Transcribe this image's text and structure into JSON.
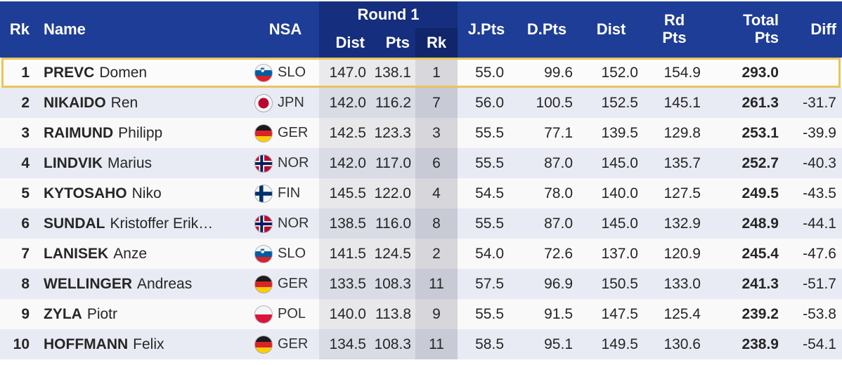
{
  "header": {
    "rk": "Rk",
    "name": "Name",
    "nsa": "NSA",
    "round1": {
      "label": "Round 1",
      "dist": "Dist",
      "pts": "Pts",
      "rk": "Rk"
    },
    "jpts": "J.Pts",
    "dpts": "D.Pts",
    "dist": "Dist",
    "rdpts_line1": "Rd",
    "rdpts_line2": "Pts",
    "total_line1": "Total",
    "total_line2": "Pts",
    "diff": "Diff"
  },
  "colors": {
    "header_blue": "#1e3d96",
    "round1_block_blue": "#152e7d",
    "row_even_bg": "#e9ebf4",
    "row_odd_bg": "#f9f9fa",
    "highlight_border": "#e9c45a"
  },
  "rows": [
    {
      "rank": "1",
      "surname": "PREVC",
      "given": "Domen",
      "flag": "slo",
      "nsa": "SLO",
      "r1_dist": "147.0",
      "r1_pts": "138.1",
      "r1_rk": "1",
      "j_pts": "55.0",
      "d_pts": "99.6",
      "dist": "152.0",
      "rd_pts": "154.9",
      "total": "293.0",
      "diff": "",
      "highlight": true
    },
    {
      "rank": "2",
      "surname": "NIKAIDO",
      "given": "Ren",
      "flag": "jpn",
      "nsa": "JPN",
      "r1_dist": "142.0",
      "r1_pts": "116.2",
      "r1_rk": "7",
      "j_pts": "56.0",
      "d_pts": "100.5",
      "dist": "152.5",
      "rd_pts": "145.1",
      "total": "261.3",
      "diff": "-31.7",
      "highlight": false
    },
    {
      "rank": "3",
      "surname": "RAIMUND",
      "given": "Philipp",
      "flag": "ger",
      "nsa": "GER",
      "r1_dist": "142.5",
      "r1_pts": "123.3",
      "r1_rk": "3",
      "j_pts": "55.5",
      "d_pts": "77.1",
      "dist": "139.5",
      "rd_pts": "129.8",
      "total": "253.1",
      "diff": "-39.9",
      "highlight": false
    },
    {
      "rank": "4",
      "surname": "LINDVIK",
      "given": "Marius",
      "flag": "nor",
      "nsa": "NOR",
      "r1_dist": "142.0",
      "r1_pts": "117.0",
      "r1_rk": "6",
      "j_pts": "55.5",
      "d_pts": "87.0",
      "dist": "145.0",
      "rd_pts": "135.7",
      "total": "252.7",
      "diff": "-40.3",
      "highlight": false
    },
    {
      "rank": "5",
      "surname": "KYTOSAHO",
      "given": "Niko",
      "flag": "fin",
      "nsa": "FIN",
      "r1_dist": "145.5",
      "r1_pts": "122.0",
      "r1_rk": "4",
      "j_pts": "54.5",
      "d_pts": "78.0",
      "dist": "140.0",
      "rd_pts": "127.5",
      "total": "249.5",
      "diff": "-43.5",
      "highlight": false
    },
    {
      "rank": "6",
      "surname": "SUNDAL",
      "given": "Kristoffer Erik…",
      "flag": "nor",
      "nsa": "NOR",
      "r1_dist": "138.5",
      "r1_pts": "116.0",
      "r1_rk": "8",
      "j_pts": "55.5",
      "d_pts": "87.0",
      "dist": "145.0",
      "rd_pts": "132.9",
      "total": "248.9",
      "diff": "-44.1",
      "highlight": false
    },
    {
      "rank": "7",
      "surname": "LANISEK",
      "given": "Anze",
      "flag": "slo",
      "nsa": "SLO",
      "r1_dist": "141.5",
      "r1_pts": "124.5",
      "r1_rk": "2",
      "j_pts": "54.0",
      "d_pts": "72.6",
      "dist": "137.0",
      "rd_pts": "120.9",
      "total": "245.4",
      "diff": "-47.6",
      "highlight": false
    },
    {
      "rank": "8",
      "surname": "WELLINGER",
      "given": "Andreas",
      "flag": "ger",
      "nsa": "GER",
      "r1_dist": "133.5",
      "r1_pts": "108.3",
      "r1_rk": "11",
      "j_pts": "57.5",
      "d_pts": "96.9",
      "dist": "150.5",
      "rd_pts": "133.0",
      "total": "241.3",
      "diff": "-51.7",
      "highlight": false
    },
    {
      "rank": "9",
      "surname": "ZYLA",
      "given": "Piotr",
      "flag": "pol",
      "nsa": "POL",
      "r1_dist": "140.0",
      "r1_pts": "113.8",
      "r1_rk": "9",
      "j_pts": "55.5",
      "d_pts": "91.5",
      "dist": "147.5",
      "rd_pts": "125.4",
      "total": "239.2",
      "diff": "-53.8",
      "highlight": false
    },
    {
      "rank": "10",
      "surname": "HOFFMANN",
      "given": "Felix",
      "flag": "ger",
      "nsa": "GER",
      "r1_dist": "134.5",
      "r1_pts": "108.3",
      "r1_rk": "11",
      "j_pts": "58.5",
      "d_pts": "95.1",
      "dist": "149.5",
      "rd_pts": "130.6",
      "total": "238.9",
      "diff": "-54.1",
      "highlight": false
    }
  ]
}
